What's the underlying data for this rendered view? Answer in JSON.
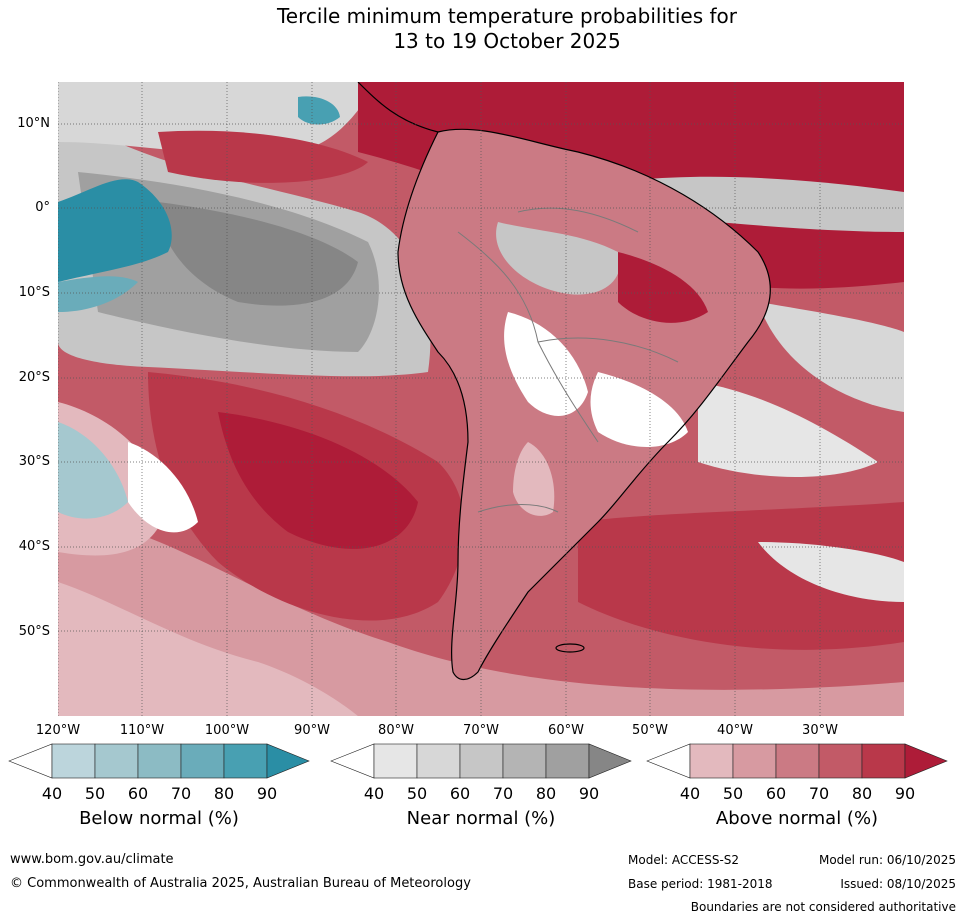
{
  "title": {
    "line1": "Tercile minimum temperature probabilities for",
    "line2": "13 to 19 October 2025"
  },
  "map": {
    "region": "South America",
    "lat_labels": [
      "10°N",
      "0°",
      "10°S",
      "20°S",
      "30°S",
      "40°S",
      "50°S"
    ],
    "lon_labels": [
      "120°W",
      "110°W",
      "100°W",
      "90°W",
      "80°W",
      "70°W",
      "60°W",
      "50°W",
      "40°W",
      "30°W"
    ]
  },
  "legends": [
    {
      "label": "Below normal (%)",
      "ticks": [
        "40",
        "50",
        "60",
        "70",
        "80",
        "90"
      ],
      "colors": [
        "#ffffff",
        "#bcd5dc",
        "#a5c8cf",
        "#8cbbc4",
        "#6aacba",
        "#48a0b2",
        "#2a8ea5"
      ]
    },
    {
      "label": "Near normal (%)",
      "ticks": [
        "40",
        "50",
        "60",
        "70",
        "80",
        "90"
      ],
      "colors": [
        "#ffffff",
        "#e6e6e6",
        "#d7d7d7",
        "#c6c6c6",
        "#b4b4b4",
        "#a0a0a0",
        "#868686"
      ]
    },
    {
      "label": "Above normal (%)",
      "ticks": [
        "40",
        "50",
        "60",
        "70",
        "80",
        "90"
      ],
      "colors": [
        "#ffffff",
        "#e3b9be",
        "#d79aa1",
        "#cb7a84",
        "#c25a67",
        "#b9384a",
        "#ae1c38"
      ]
    }
  ],
  "footer": {
    "website": "www.bom.gov.au/climate",
    "copyright": "© Commonwealth of Australia 2025, Australian Bureau of Meteorology",
    "model": "Model: ACCESS-S2",
    "model_run": "Model run: 06/10/2025",
    "base_period": "Base period: 1981-2018",
    "issued": "Issued: 08/10/2025",
    "disclaimer": "Boundaries are not considered authoritative"
  }
}
